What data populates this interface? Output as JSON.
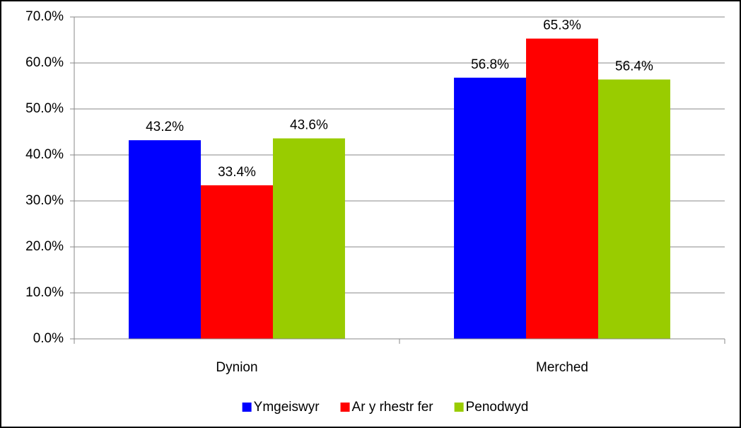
{
  "chart_data": {
    "type": "bar",
    "categories": [
      "Dynion",
      "Merched"
    ],
    "series": [
      {
        "name": "Ymgeiswyr",
        "color": "#0000ff",
        "values": [
          43.2,
          56.8
        ],
        "value_labels": [
          "43.2%",
          "56.8%"
        ]
      },
      {
        "name": "Ar y rhestr fer",
        "color": "#ff0000",
        "values": [
          33.4,
          65.3
        ],
        "value_labels": [
          "33.4%",
          "65.3%"
        ]
      },
      {
        "name": "Penodwyd",
        "color": "#99cc00",
        "values": [
          43.6,
          56.4
        ],
        "value_labels": [
          "43.6%",
          "56.4%"
        ]
      }
    ],
    "ylim": [
      0,
      70
    ],
    "yticks": [
      {
        "value": 0,
        "label": "0.0%"
      },
      {
        "value": 10,
        "label": "10.0%"
      },
      {
        "value": 20,
        "label": "20.0%"
      },
      {
        "value": 30,
        "label": "30.0%"
      },
      {
        "value": 40,
        "label": "40.0%"
      },
      {
        "value": 50,
        "label": "50.0%"
      },
      {
        "value": 60,
        "label": "60.0%"
      },
      {
        "value": 70,
        "label": "70.0%"
      }
    ],
    "grid": true,
    "legend": "bottom"
  }
}
